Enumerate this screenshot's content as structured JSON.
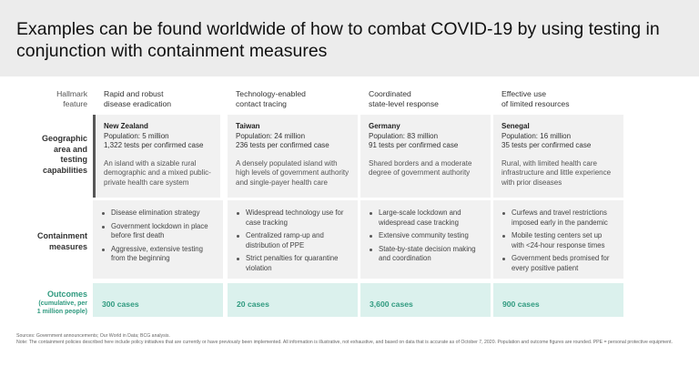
{
  "title": "Examples can be found worldwide of how to combat COVID-19 by using testing in conjunction with containment measures",
  "hallmark_label": "Hallmark\nfeature",
  "columns": [
    {
      "hallmark": "Rapid and robust\ndisease eradication",
      "location": "New Zealand",
      "population": "Population: 5 million",
      "tests": "1,322 tests per confirmed case",
      "description": "An island with a sizable rural demographic and a mixed public-private health care system",
      "measures": [
        "Disease elimination strategy",
        "Government lockdown in place before first death",
        "Aggressive, extensive testing from the beginning"
      ],
      "outcome": "300 cases"
    },
    {
      "hallmark": "Technology-enabled\ncontact tracing",
      "location": "Taiwan",
      "population": "Population: 24 million",
      "tests": "236 tests per confirmed case",
      "description": "A densely populated island with high levels of government authority and single-payer health care",
      "measures": [
        "Widespread technology use for case tracking",
        "Centralized ramp-up and distribution of PPE",
        "Strict penalties for quarantine violation"
      ],
      "outcome": "20 cases"
    },
    {
      "hallmark": "Coordinated\nstate-level response",
      "location": "Germany",
      "population": "Population: 83 million",
      "tests": "91 tests per confirmed case",
      "description": "Shared borders and a moderate degree of government authority",
      "measures": [
        "Large-scale lockdown and widespread case tracking",
        "Extensive community testing",
        "State-by-state decision making and coordination"
      ],
      "outcome": "3,600 cases"
    },
    {
      "hallmark": "Effective use\nof limited resources",
      "location": "Senegal",
      "population": "Population: 16 million",
      "tests": "35 tests per confirmed case",
      "description": "Rural, with limited health care infrastructure and little experience with prior diseases",
      "measures": [
        "Curfews and travel restrictions imposed early in the pandemic",
        "Mobile testing centers set up with <24-hour response times",
        "Government beds promised for every positive patient"
      ],
      "outcome": "900 cases"
    }
  ],
  "rows": {
    "geo_label": "Geographic\narea and\ntesting\ncapabilities",
    "containment_label": "Containment\nmeasures",
    "outcomes_label": "Outcomes",
    "outcomes_sub": "(cumulative, per\n1 million people)"
  },
  "footnote": {
    "sources": "Sources: Government announcements; Our World in Data; BCG analysis.",
    "note": "Note: The containment policies described here include policy initiatives that are currently or have previously been implemented. All information is illustrative, not exhaustive, and based on data that is accurate as of October 7, 2020. Population and outcome figures are rounded. PPE = personal protective equipment."
  },
  "colors": {
    "header_band": "#ececec",
    "cell_grey": "#f1f1f1",
    "outcome_bg": "#dbf1ed",
    "outcome_text": "#2f9a7f",
    "accent_bar": "#575757"
  }
}
